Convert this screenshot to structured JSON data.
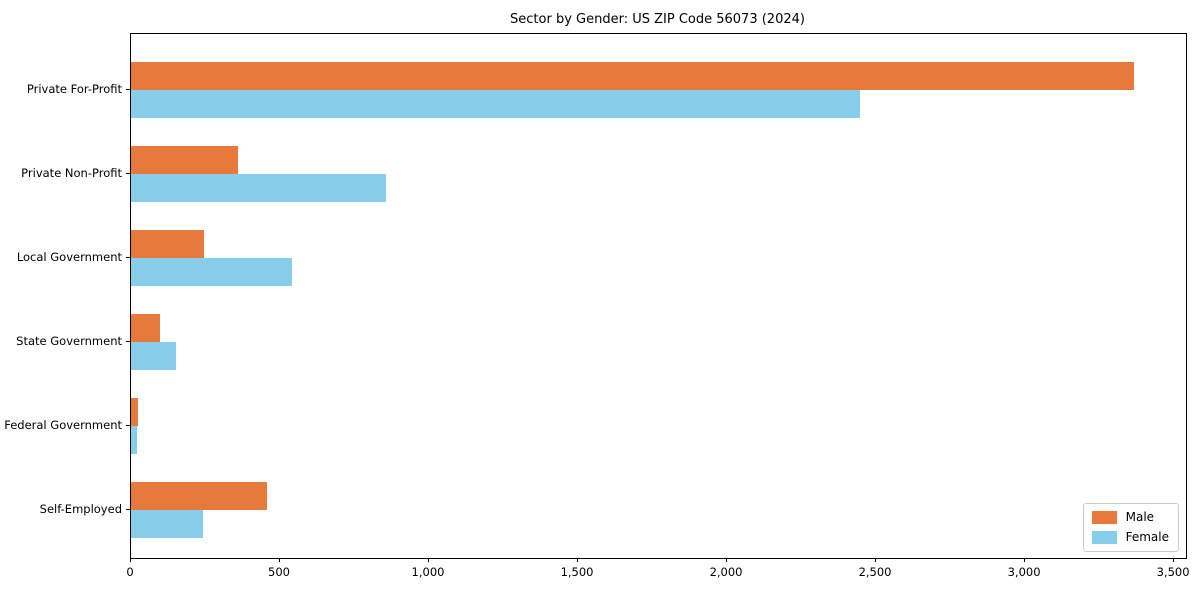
{
  "chart_data": {
    "type": "bar",
    "orientation": "horizontal",
    "title": "Sector by Gender: US ZIP Code 56073 (2024)",
    "categories": [
      "Private For-Profit",
      "Private Non-Profit",
      "Local Government",
      "State Government",
      "Federal Government",
      "Self-Employed"
    ],
    "series": [
      {
        "name": "Male",
        "color": "#e8793d",
        "values": [
          3366,
          358,
          244,
          98,
          24,
          456
        ]
      },
      {
        "name": "Female",
        "color": "#87ceeb",
        "values": [
          2447,
          856,
          540,
          151,
          19,
          241
        ]
      }
    ],
    "xlabel": "",
    "ylabel": "",
    "xlim": [
      0,
      3540
    ],
    "xticks": {
      "values": [
        0,
        500,
        1000,
        1500,
        2000,
        2500,
        3000,
        3500
      ],
      "labels": [
        "0",
        "500",
        "1,000",
        "1,500",
        "2,000",
        "2,500",
        "3,000",
        "3,500"
      ]
    },
    "grid": false,
    "legend": {
      "position": "lower right",
      "entries": [
        "Male",
        "Female"
      ]
    }
  }
}
